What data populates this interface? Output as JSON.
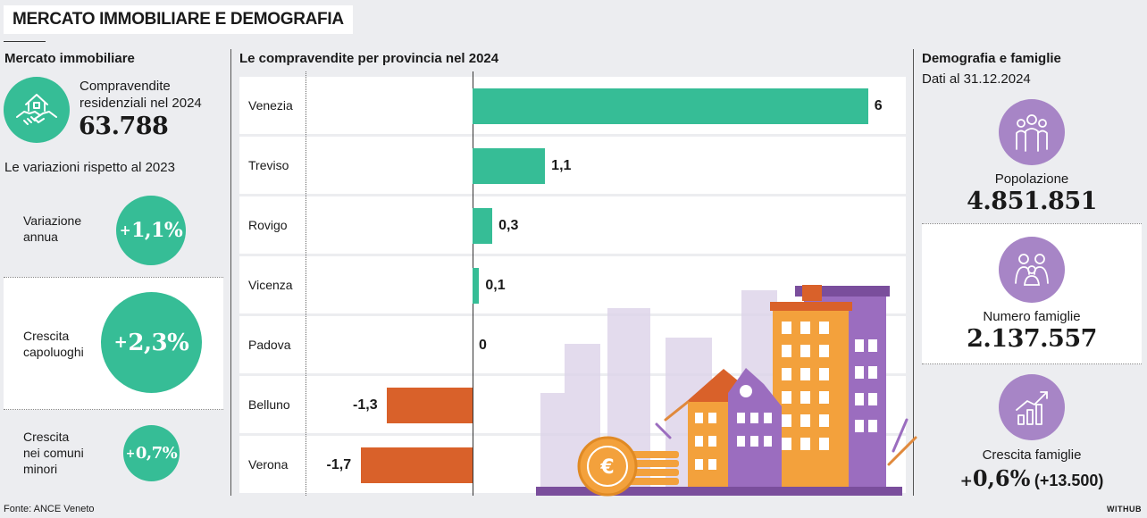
{
  "title": "MERCATO IMMOBILIARE E DEMOGRAFIA",
  "left": {
    "heading": "Mercato immobiliare",
    "sales_label": "Compravendite residenziali nel 2024",
    "sales_label_l1": "Compravendite",
    "sales_label_l2": "residenziali nel 2024",
    "sales_value": "63.788",
    "variations_heading": "Le variazioni rispetto al 2023",
    "items": [
      {
        "label_l1": "Variazione",
        "label_l2": "annua",
        "sign": "+",
        "value": "1,1%"
      },
      {
        "label_l1": "Crescita",
        "label_l2": "capoluoghi",
        "sign": "+",
        "value": "2,3%"
      },
      {
        "label_l1": "Crescita",
        "label_l2": "nei comuni",
        "label_l3": "minori",
        "sign": "+",
        "value": "0,7%"
      }
    ]
  },
  "chart_data": {
    "type": "bar",
    "orientation": "horizontal",
    "title": "Le compravendite per provincia nel 2024",
    "categories": [
      "Venezia",
      "Treviso",
      "Rovigo",
      "Vicenza",
      "Padova",
      "Belluno",
      "Verona"
    ],
    "values": [
      6,
      1.1,
      0.3,
      0.1,
      0,
      -1.3,
      -1.7
    ],
    "value_labels": [
      "6",
      "1,1",
      "0,3",
      "0,1",
      "0",
      "-1,3",
      "-1,7"
    ],
    "positive_color": "#36bd96",
    "negative_color": "#d9612a"
  },
  "right": {
    "heading": "Demografia e famiglie",
    "date": "Dati al 31.12.2024",
    "population_label": "Popolazione",
    "population_value": "4.851.851",
    "families_label": "Numero famiglie",
    "families_value": "2.137.557",
    "growth_label": "Crescita famiglie",
    "growth_sign": "+",
    "growth_value": "0,6%",
    "growth_extra": "(+13.500)"
  },
  "source": "Fonte: ANCE Veneto",
  "brand": "WITHUB",
  "colors": {
    "green": "#36bd96",
    "orange": "#d9612a",
    "purple": "#a785c6",
    "background": "#ecedf0"
  }
}
